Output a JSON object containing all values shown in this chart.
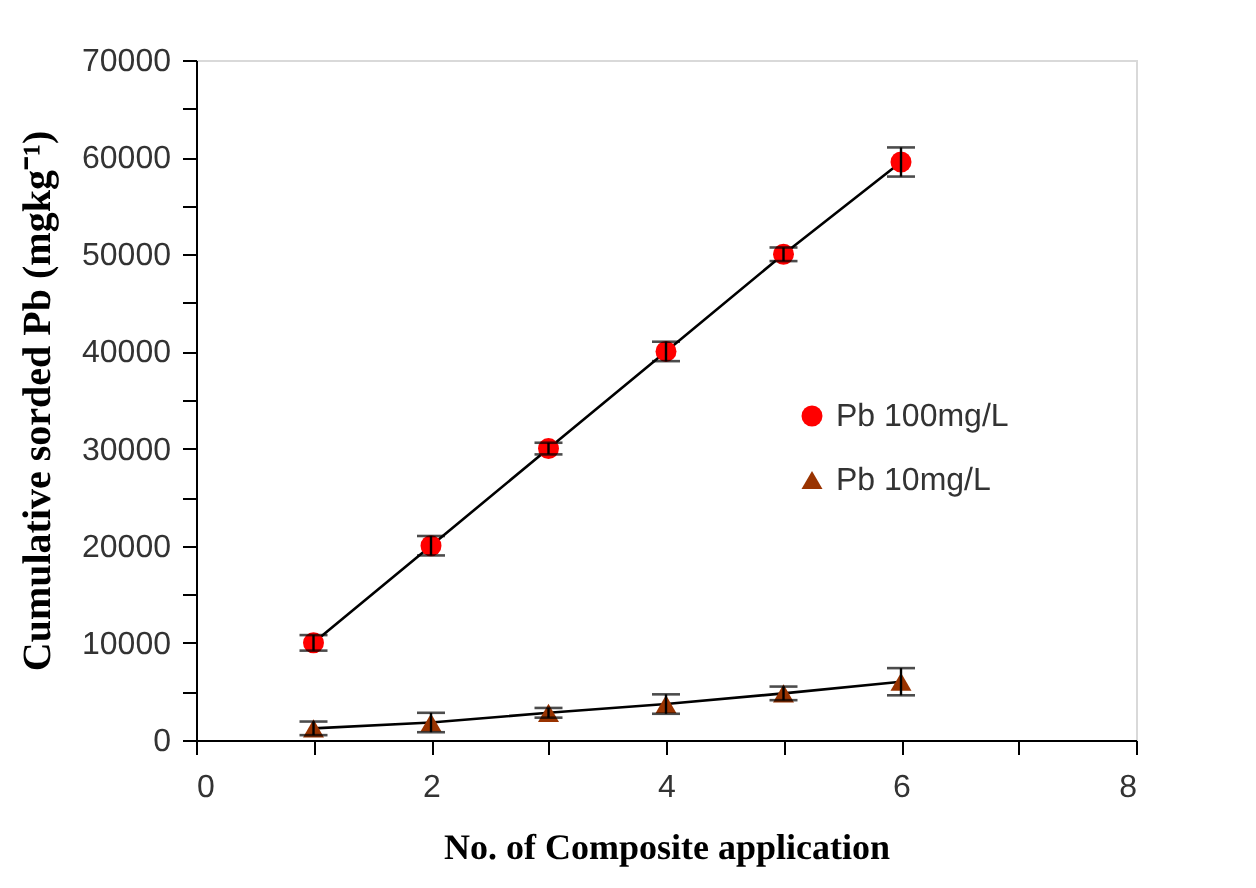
{
  "chart_data": {
    "type": "line",
    "xlabel": "No. of Composite application",
    "ylabel": "Cumulative sorded Pb (mgkg⁻¹)",
    "xlim": [
      0,
      8
    ],
    "xticks": [
      0,
      {
        "value": 1,
        "label": null
      },
      2,
      {
        "value": 3,
        "label": null
      },
      4,
      {
        "value": 5,
        "label": null
      },
      6,
      {
        "value": 7,
        "label": null
      },
      8
    ],
    "ylim": [
      0,
      70000
    ],
    "yticks": [
      0,
      {
        "value": 5000,
        "label": null
      },
      10000,
      {
        "value": 15000,
        "label": null
      },
      20000,
      {
        "value": 25000,
        "label": null
      },
      30000,
      {
        "value": 35000,
        "label": null
      },
      40000,
      {
        "value": 45000,
        "label": null
      },
      50000,
      {
        "value": 55000,
        "label": null
      },
      60000,
      {
        "value": 65000,
        "label": null
      },
      70000
    ],
    "x": [
      1,
      2,
      3,
      4,
      5,
      6
    ],
    "series": [
      {
        "name": "Pb 100mg/L",
        "color": "#ff0000",
        "marker": "circle",
        "values": [
          10000,
          20000,
          30000,
          40000,
          50000,
          59500
        ],
        "errors": [
          800,
          1000,
          600,
          1000,
          700,
          1500
        ]
      },
      {
        "name": "Pb 10mg/L",
        "color": "#993300",
        "marker": "triangle",
        "values": [
          1200,
          1800,
          2800,
          3700,
          4800,
          6000
        ],
        "errors": [
          700,
          1000,
          500,
          1000,
          700,
          1400
        ]
      }
    ],
    "legend": "right",
    "grid": false
  }
}
